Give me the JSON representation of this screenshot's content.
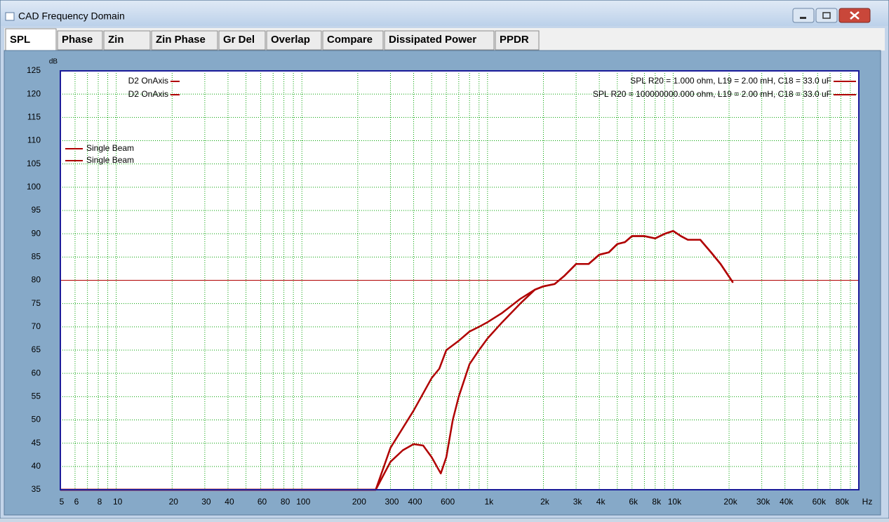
{
  "window": {
    "title": "CAD Frequency Domain"
  },
  "tabs": [
    "SPL",
    "Phase",
    "Zin",
    "Zin Phase",
    "Gr Del",
    "Overlap",
    "Compare",
    "Dissipated Power",
    "PPDR"
  ],
  "chart_data": {
    "type": "line",
    "y_label": "dB",
    "x_label": "Hz",
    "xscale": "log",
    "grid": true,
    "xlim": [
      5,
      100000
    ],
    "ylim": [
      35,
      125
    ],
    "yticks": [
      35,
      40,
      45,
      50,
      55,
      60,
      65,
      70,
      75,
      80,
      85,
      90,
      95,
      100,
      105,
      110,
      115,
      120,
      125
    ],
    "xticks": [
      5,
      6,
      8,
      10,
      20,
      30,
      40,
      60,
      80,
      100,
      200,
      300,
      400,
      600,
      {
        "value": 1000,
        "label": "1k"
      },
      {
        "value": 2000,
        "label": "2k"
      },
      {
        "value": 3000,
        "label": "3k"
      },
      {
        "value": 4000,
        "label": "4k"
      },
      {
        "value": 6000,
        "label": "6k"
      },
      {
        "value": 8000,
        "label": "8k"
      },
      {
        "value": 10000,
        "label": "10k"
      },
      {
        "value": 20000,
        "label": "20k"
      },
      {
        "value": 30000,
        "label": "30k"
      },
      {
        "value": 40000,
        "label": "40k"
      },
      {
        "value": 60000,
        "label": "60k"
      },
      {
        "value": 80000,
        "label": "80k"
      }
    ],
    "xminor": [
      7,
      9,
      50,
      70,
      90,
      500,
      700,
      800,
      900,
      5000,
      7000,
      9000,
      50000,
      70000,
      90000
    ],
    "reference_line": {
      "value": 80,
      "color": "#b00000"
    },
    "series": [
      {
        "name": "SPL  R20 = 1.000 ohm, L19 = 2.00 mH, C18 = 33.0 uF",
        "color": "#b00000",
        "x": [
          5,
          250,
          300,
          400,
          500,
          550,
          600,
          700,
          800,
          900,
          1000,
          1200,
          1500,
          1800,
          2000,
          2300,
          2600,
          3000,
          3500,
          4000,
          4500,
          5000,
          5500,
          6000,
          7000,
          8000,
          9000,
          10000,
          11000,
          12000,
          14000,
          16000,
          18000,
          21000
        ],
        "values": [
          35,
          35,
          44,
          52,
          59,
          61,
          65,
          67,
          69,
          70,
          71,
          73,
          76,
          78,
          78.7,
          79.2,
          81,
          83.5,
          83.5,
          85.5,
          86,
          87.8,
          88.2,
          89.5,
          89.5,
          89,
          90,
          90.6,
          89.5,
          88.7,
          88.7,
          86,
          83.5,
          79.5
        ]
      },
      {
        "name": "SPL  R20 = 100000000.000 ohm, L19 = 2.00 mH, C18 = 33.0 uF",
        "color": "#b00000",
        "x": [
          5,
          250,
          300,
          350,
          400,
          450,
          500,
          560,
          600,
          650,
          700,
          800,
          900,
          1000,
          1200,
          1500,
          1800,
          2000,
          2300,
          2600,
          3000,
          3500,
          4000,
          4500,
          5000,
          5500,
          6000,
          7000,
          8000,
          9000,
          10000,
          11000,
          12000,
          14000,
          16000,
          18000,
          21000
        ],
        "values": [
          35,
          35,
          41,
          43.5,
          44.8,
          44.5,
          42,
          38.5,
          42,
          50,
          55,
          62,
          65,
          67.5,
          71,
          75,
          78,
          78.7,
          79.2,
          81,
          83.5,
          83.5,
          85.5,
          86,
          87.8,
          88.2,
          89.5,
          89.5,
          89,
          90,
          90.6,
          89.5,
          88.7,
          88.7,
          86,
          83.5,
          79.5
        ]
      }
    ],
    "other_legends": [
      "D2 OnAxis",
      "D2 OnAxis",
      "Single Beam",
      "Single Beam"
    ]
  }
}
